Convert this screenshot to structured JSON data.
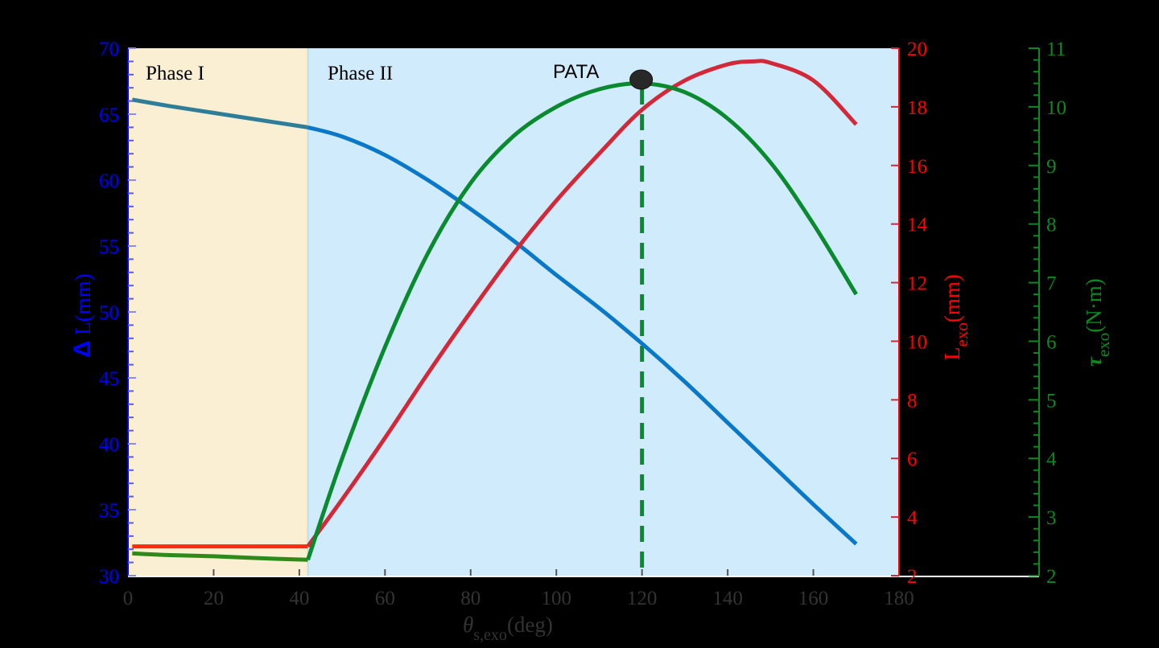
{
  "chart_data": {
    "type": "line",
    "title": "",
    "xlabel": "θ_s,exo (deg)",
    "xlabel_parts": {
      "symbol": "θ",
      "subscript": "s,exo",
      "unit": "(deg)"
    },
    "xlim": [
      0,
      180
    ],
    "xticks": [
      0,
      20,
      40,
      60,
      80,
      100,
      120,
      140,
      160,
      180
    ],
    "axes": [
      {
        "id": "left",
        "label": "Δ L(mm)",
        "label_parts": {
          "symbol": "Δ",
          "text": " L(mm)"
        },
        "color": "#0000ff",
        "ylim": [
          30,
          70
        ],
        "ticks": [
          30,
          35,
          40,
          45,
          50,
          55,
          60,
          65,
          70
        ]
      },
      {
        "id": "right1",
        "label": "L_exo(mm)",
        "label_parts": {
          "symbol": "L",
          "subscript": "exo",
          "unit": "(mm)"
        },
        "color": "#ff0000",
        "ylim": [
          2,
          20
        ],
        "ticks": [
          2,
          4,
          6,
          8,
          10,
          12,
          14,
          16,
          18,
          20
        ]
      },
      {
        "id": "right2",
        "label": "τ_exo(N·m)",
        "label_parts": {
          "symbol": "τ",
          "subscript": "exo",
          "unit": "(N·m)"
        },
        "color": "#0a8a1e",
        "ylim": [
          2,
          11
        ],
        "ticks": [
          2,
          3,
          4,
          5,
          6,
          7,
          8,
          9,
          10,
          11
        ]
      }
    ],
    "regions": [
      {
        "label": "Phase I",
        "x_start": 0,
        "x_end": 42,
        "color": "#faefd2"
      },
      {
        "label": "Phase II",
        "x_start": 42,
        "x_end": 180,
        "color": "#d0ebfc"
      }
    ],
    "series": [
      {
        "name": "ΔL",
        "axis": "left",
        "color": "#0a78c8",
        "x": [
          1,
          10,
          20,
          30,
          42,
          50,
          60,
          70,
          80,
          90,
          100,
          110,
          120,
          130,
          140,
          150,
          160,
          170
        ],
        "values": [
          66.1,
          65.6,
          65.1,
          64.6,
          64.0,
          63.3,
          61.9,
          60.0,
          57.8,
          55.4,
          52.8,
          50.3,
          47.6,
          44.7,
          41.6,
          38.5,
          35.4,
          32.4
        ]
      },
      {
        "name": "L_exo",
        "axis": "right1",
        "color": "#d22838",
        "x": [
          1,
          10,
          20,
          30,
          42,
          50,
          60,
          70,
          80,
          90,
          100,
          110,
          120,
          130,
          140,
          146,
          150,
          160,
          170
        ],
        "values": [
          3.0,
          3.0,
          3.0,
          3.0,
          3.0,
          4.6,
          6.7,
          8.9,
          11.0,
          13.0,
          14.8,
          16.4,
          17.9,
          18.9,
          19.45,
          19.55,
          19.5,
          18.9,
          17.4
        ]
      },
      {
        "name": "τ_exo",
        "axis": "right2",
        "color": "#0a8a2e",
        "x": [
          1,
          10,
          20,
          30,
          42,
          50,
          60,
          70,
          80,
          90,
          100,
          110,
          120,
          130,
          140,
          150,
          160,
          170
        ],
        "values": [
          2.38,
          2.35,
          2.33,
          2.3,
          2.27,
          4.0,
          5.9,
          7.5,
          8.7,
          9.5,
          10.0,
          10.3,
          10.4,
          10.25,
          9.8,
          9.05,
          8.0,
          6.8
        ]
      }
    ],
    "annotations": [
      {
        "type": "point",
        "label": "PATA",
        "x": 120,
        "axis": "right2",
        "y": 10.4,
        "color": "#282828"
      },
      {
        "type": "vline",
        "x": 120,
        "style": "dashed",
        "color": "#0a8a2e"
      }
    ],
    "grid": false,
    "legend": "none"
  },
  "labels": {
    "phase1": "Phase I",
    "phase2": "Phase II",
    "pata": "PATA"
  }
}
